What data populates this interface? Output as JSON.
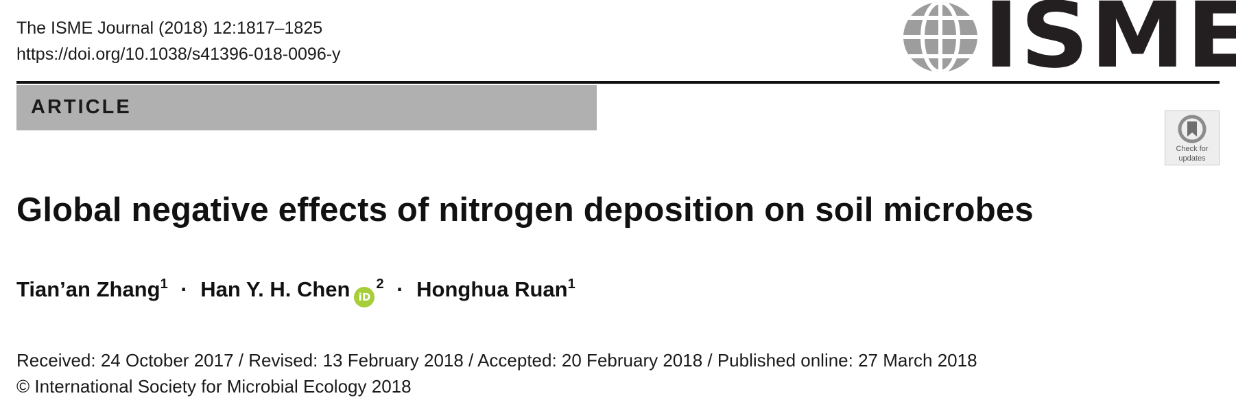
{
  "header": {
    "journal_citation": "The ISME Journal (2018) 12:1817–1825",
    "doi": "https://doi.org/10.1038/s41396-018-0096-y",
    "logo_text": "ISME",
    "section_label": "ARTICLE"
  },
  "check_updates": {
    "line1": "Check for",
    "line2": "updates"
  },
  "title": "Global negative effects of nitrogen deposition on soil microbes",
  "authors": [
    {
      "name": "Tian’an Zhang",
      "affiliation": "1"
    },
    {
      "name": "Han Y. H. Chen",
      "affiliation": "2",
      "orcid_badge": "iD"
    },
    {
      "name": "Honghua Ruan",
      "affiliation": "1"
    }
  ],
  "author_separator": "·",
  "dates_line": "Received: 24 October 2017 / Revised: 13 February 2018 / Accepted: 20 February 2018 / Published online: 27 March 2018",
  "copyright_line": "© International Society for Microbial Ecology 2018",
  "colors": {
    "section_bar": "#b0b0b0",
    "orcid_green": "#a6ce39",
    "logo_grey": "#9d9d9d",
    "logo_dark": "#231f20"
  }
}
